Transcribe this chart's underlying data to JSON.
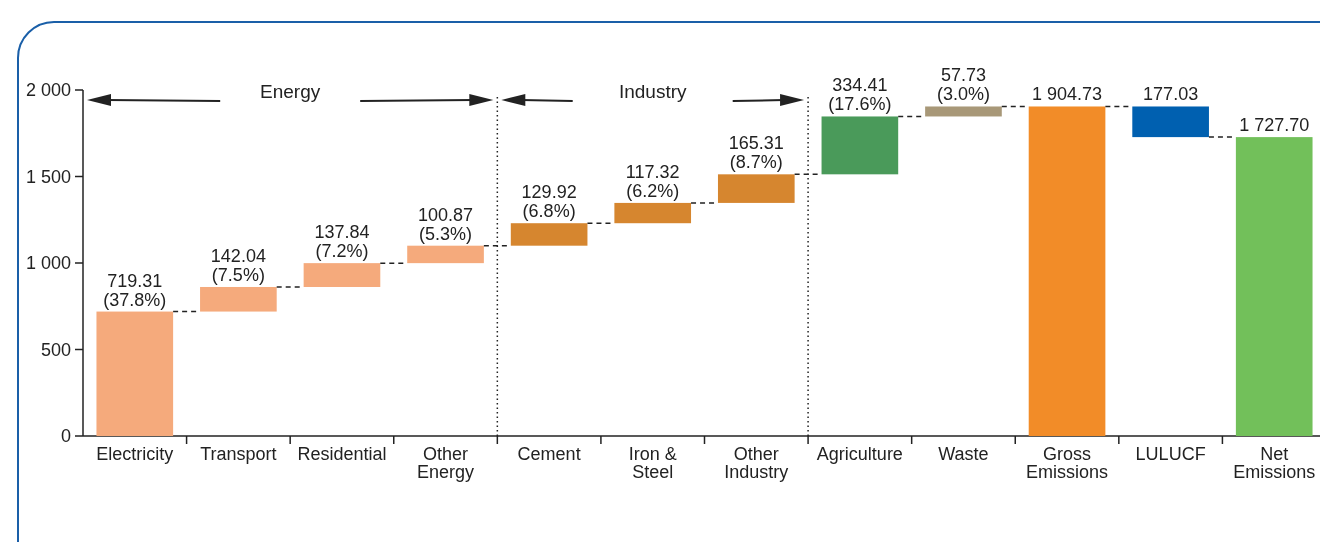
{
  "chart_data": {
    "type": "bar",
    "categories": [
      "Electricity",
      "Transport",
      "Residential",
      "Other Energy",
      "Cement",
      "Iron & Steel",
      "Other Industry",
      "Agriculture",
      "Waste",
      "Gross Emissions",
      "LULUCF",
      "Net Emissions"
    ],
    "values": [
      719.31,
      142.04,
      137.84,
      100.87,
      129.92,
      117.32,
      165.31,
      334.41,
      57.73,
      1904.73,
      177.03,
      1727.7
    ],
    "base": [
      0,
      719.31,
      861.35,
      999.19,
      1100.06,
      1229.98,
      1347.3,
      1512.61,
      1847.02,
      0,
      1727.7,
      0
    ],
    "colors": [
      "#f5aa7c",
      "#f5aa7c",
      "#f5aa7c",
      "#f5aa7c",
      "#d6862f",
      "#d6862f",
      "#d6862f",
      "#4a9a5a",
      "#a89878",
      "#f28c28",
      "#0060b0",
      "#72c05a"
    ],
    "value_labels": [
      "719.31\n(37.8%)",
      "142.04\n(7.5%)",
      "137.84\n(7.2%)",
      "100.87\n(5.3%)",
      "129.92\n(6.8%)",
      "117.32\n(6.2%)",
      "165.31\n(8.7%)",
      "334.41\n(17.6%)",
      "57.73\n(3.0%)",
      "1 904.73",
      "177.03",
      "1 727.70"
    ],
    "ylim": [
      0,
      2000
    ],
    "yticks": [
      0,
      500,
      {
        "value": 1000,
        "label": "1 000"
      },
      {
        "value": 1500,
        "label": "1 500"
      },
      {
        "value": 2000,
        "label": "2 000"
      }
    ],
    "annotations": [
      "Energy",
      "Industry"
    ],
    "grid": false
  }
}
